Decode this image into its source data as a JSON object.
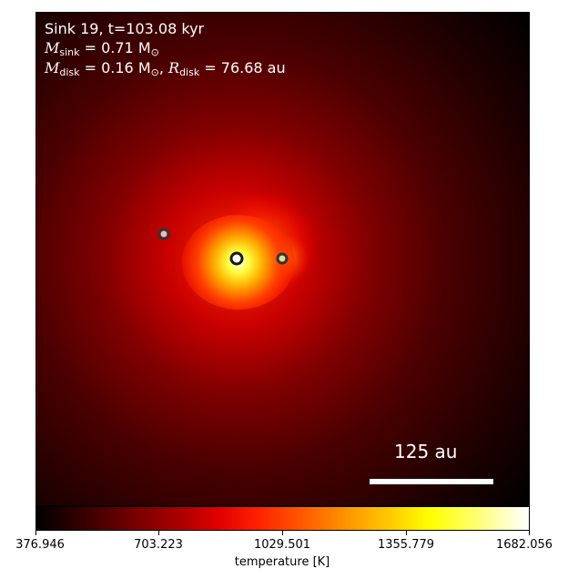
{
  "title_line": "Sink 19, t=103.08 kyr",
  "sink_mass": {
    "symbol": "M",
    "sub": "sink",
    "text": " = 0.71 M",
    "unit_sub": "⊙"
  },
  "disk_line": {
    "m_symbol": "M",
    "m_sub": "disk",
    "m_text": " = 0.16 M",
    "m_unit_sub": "⊙",
    "sep": ", ",
    "r_symbol": "R",
    "r_sub": "disk",
    "r_text": " = 76.68 au"
  },
  "scale_bar": {
    "label": "125 au",
    "length_au": 125
  },
  "colorbar": {
    "label": "temperature [K]",
    "colormap": "hot",
    "ticks": [
      "376.946",
      "703.223",
      "1029.501",
      "1355.779",
      "1682.056"
    ],
    "range": [
      376.946,
      1682.056
    ]
  },
  "sinks": [
    {
      "name": "primary",
      "fill": "#ffffff",
      "edge": "#222222"
    },
    {
      "name": "companion-right",
      "fill": "#d8e0a0",
      "edge": "#333333"
    },
    {
      "name": "companion-left",
      "fill": "#f0b8b8",
      "edge": "#333333"
    }
  ]
}
